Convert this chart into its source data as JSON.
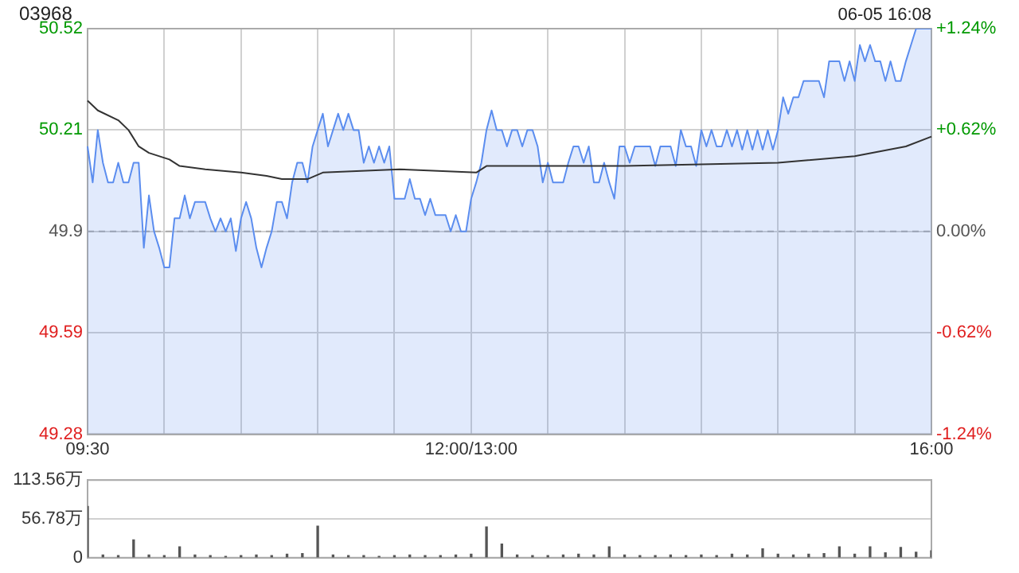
{
  "chart_data": [
    {
      "type": "line",
      "title": "03968",
      "annotations": [
        "06-05 16:08"
      ],
      "categories": [
        "09:30",
        null,
        null,
        null,
        null,
        null,
        null,
        null,
        null,
        null,
        null,
        null,
        null,
        null,
        null,
        null,
        null,
        null,
        null,
        null,
        null,
        null,
        null,
        null,
        null,
        null,
        null,
        null,
        null,
        null,
        null,
        null,
        null,
        null,
        null,
        null,
        null,
        null,
        null,
        null,
        null,
        null,
        null,
        null,
        null,
        null,
        null,
        null,
        null,
        null,
        null,
        null,
        null,
        null,
        null,
        null,
        null,
        null,
        null,
        null,
        null,
        null,
        null,
        null,
        null,
        null,
        null,
        null,
        null,
        null,
        null,
        null,
        null,
        null,
        null,
        "12:00/13:00",
        null,
        null,
        null,
        null,
        null,
        null,
        null,
        null,
        null,
        null,
        null,
        null,
        null,
        null,
        null,
        null,
        null,
        null,
        null,
        null,
        null,
        null,
        null,
        null,
        null,
        null,
        null,
        null,
        null,
        null,
        null,
        null,
        null,
        null,
        null,
        null,
        null,
        null,
        null,
        null,
        null,
        null,
        null,
        null,
        null,
        null,
        null,
        null,
        null,
        null,
        null,
        null,
        null,
        null,
        null,
        null,
        null,
        null,
        null,
        null,
        null,
        null,
        null,
        null,
        null,
        null,
        null,
        null,
        null,
        null,
        null,
        null,
        null,
        null,
        null,
        null,
        null,
        null,
        null,
        null,
        null,
        null,
        null,
        null,
        null,
        null,
        null,
        null,
        null,
        "16:00"
      ],
      "ylim": [
        49.28,
        50.52
      ],
      "yticks": [
        49.28,
        49.59,
        49.9,
        50.21,
        50.52
      ],
      "y2lim": [
        -1.24,
        1.24
      ],
      "y2ticks": [
        {
          "value": -1.24,
          "label": "-1.24%"
        },
        {
          "value": -0.62,
          "label": "-0.62%"
        },
        {
          "value": 0,
          "label": "0.00%"
        },
        {
          "value": 0.62,
          "label": "+0.62%"
        },
        {
          "value": 1.24,
          "label": "+1.24%"
        }
      ],
      "grid": true,
      "marker": "none",
      "ref_lines": [
        {
          "axis": "y",
          "value": 49.9,
          "line_style": "dashed",
          "color": "#aaaaaa"
        }
      ],
      "series": [
        {
          "type": "area",
          "color": "#5b8def",
          "values": [
            50.16,
            50.05,
            50.21,
            50.11,
            50.05,
            50.05,
            50.11,
            50.05,
            50.05,
            50.11,
            50.11,
            49.85,
            50.01,
            49.9,
            49.85,
            49.79,
            49.79,
            49.94,
            49.94,
            50.01,
            49.94,
            49.99,
            49.99,
            49.99,
            49.94,
            49.9,
            49.94,
            49.9,
            49.94,
            49.84,
            49.94,
            49.99,
            49.94,
            49.85,
            49.79,
            49.85,
            49.9,
            49.99,
            49.99,
            49.94,
            50.05,
            50.11,
            50.11,
            50.05,
            50.16,
            50.21,
            50.26,
            50.16,
            50.21,
            50.26,
            50.21,
            50.26,
            50.21,
            50.21,
            50.11,
            50.16,
            50.11,
            50.16,
            50.11,
            50.16,
            50.0,
            50.0,
            50.0,
            50.06,
            50.0,
            50.0,
            49.95,
            50.0,
            49.95,
            49.95,
            49.95,
            49.9,
            49.95,
            49.9,
            49.9,
            50.0,
            50.05,
            50.11,
            50.21,
            50.27,
            50.21,
            50.21,
            50.16,
            50.21,
            50.21,
            50.16,
            50.21,
            50.21,
            50.16,
            50.05,
            50.11,
            50.05,
            50.05,
            50.05,
            50.11,
            50.16,
            50.16,
            50.11,
            50.16,
            50.05,
            50.05,
            50.11,
            50.05,
            50.0,
            50.16,
            50.16,
            50.11,
            50.16,
            50.16,
            50.16,
            50.16,
            50.1,
            50.16,
            50.16,
            50.16,
            50.1,
            50.21,
            50.16,
            50.16,
            50.1,
            50.21,
            50.16,
            50.21,
            50.16,
            50.16,
            50.21,
            50.16,
            50.21,
            50.15,
            50.21,
            50.15,
            50.21,
            50.15,
            50.21,
            50.15,
            50.21,
            50.31,
            50.26,
            50.31,
            50.31,
            50.36,
            50.36,
            50.36,
            50.36,
            50.31,
            50.42,
            50.42,
            50.42,
            50.36,
            50.42,
            50.36,
            50.47,
            50.42,
            50.47,
            50.42,
            50.42,
            50.36,
            50.42,
            50.36,
            50.36,
            50.42,
            50.47,
            50.52,
            50.52,
            50.52,
            50.52
          ]
        },
        {
          "color": "#333333",
          "values": [
            50.3,
            null,
            50.27,
            null,
            null,
            null,
            50.24,
            null,
            50.21,
            null,
            50.16,
            null,
            50.14,
            null,
            null,
            null,
            50.12,
            null,
            50.1,
            null,
            null,
            null,
            null,
            50.09,
            null,
            null,
            null,
            null,
            null,
            null,
            50.08,
            null,
            null,
            null,
            null,
            50.07,
            null,
            null,
            50.06,
            null,
            null,
            null,
            null,
            50.06,
            null,
            null,
            50.08,
            null,
            null,
            null,
            null,
            null,
            null,
            null,
            null,
            null,
            null,
            null,
            null,
            null,
            null,
            50.09,
            null,
            null,
            null,
            null,
            null,
            null,
            null,
            null,
            null,
            null,
            null,
            null,
            null,
            null,
            50.08,
            null,
            50.1,
            null,
            50.1,
            null,
            null,
            null,
            null,
            null,
            null,
            null,
            null,
            null,
            null,
            null,
            null,
            null,
            null,
            null,
            null,
            null,
            null,
            null,
            null,
            null,
            null,
            null,
            null,
            50.1,
            null,
            null,
            null,
            null,
            null,
            null,
            null,
            null,
            null,
            null,
            null,
            null,
            null,
            null,
            null,
            null,
            null,
            null,
            null,
            null,
            null,
            null,
            null,
            null,
            null,
            null,
            null,
            null,
            null,
            50.11,
            null,
            null,
            null,
            null,
            null,
            null,
            null,
            null,
            null,
            null,
            null,
            null,
            null,
            null,
            50.13,
            null,
            null,
            null,
            null,
            null,
            null,
            null,
            null,
            null,
            50.16,
            null,
            null,
            null,
            null,
            50.19
          ]
        }
      ]
    },
    {
      "type": "bar",
      "categories": [
        null,
        null,
        null,
        null,
        null,
        null,
        null,
        null,
        null,
        null,
        null,
        null,
        null,
        null,
        null,
        null,
        null,
        null,
        null,
        null,
        null,
        null,
        null,
        null,
        null,
        null,
        null,
        null,
        null,
        null,
        null,
        null,
        null,
        null,
        null,
        null,
        null,
        null,
        null,
        null,
        null,
        null,
        null,
        null,
        null,
        null,
        null,
        null,
        null,
        null,
        null,
        null,
        null,
        null,
        null,
        null,
        null,
        null,
        null,
        null,
        null,
        null,
        null,
        null,
        null,
        null,
        null,
        null,
        null,
        null,
        null,
        null,
        null,
        null,
        null,
        null,
        null,
        null,
        null,
        null,
        null,
        null,
        null,
        null,
        null,
        null,
        null,
        null,
        null,
        null,
        null,
        null,
        null,
        null,
        null,
        null,
        null,
        null,
        null,
        null,
        null,
        null,
        null,
        null,
        null,
        null,
        null,
        null,
        null,
        null,
        null,
        null,
        null,
        null,
        null,
        null,
        null,
        null,
        null,
        null,
        null,
        null,
        null,
        null,
        null,
        null,
        null,
        null,
        null,
        null,
        null,
        null,
        null,
        null,
        null,
        null,
        null,
        null,
        null,
        null,
        null,
        null,
        null,
        null,
        null,
        null,
        null,
        null,
        null,
        null,
        null,
        null,
        null,
        null,
        null,
        null,
        null,
        null,
        null,
        null,
        null,
        null,
        null,
        null,
        null,
        null
      ],
      "ylim": [
        0,
        113.56
      ],
      "yticks": [
        0,
        {
          "value": 56.78,
          "label": "56.78万"
        },
        {
          "value": 113.56,
          "label": "113.56万"
        }
      ],
      "grid": "y",
      "tick_labels": "y",
      "series": [
        {
          "color": "#555555",
          "values": [
            75,
            null,
            null,
            4,
            null,
            null,
            3,
            null,
            null,
            26,
            null,
            null,
            4,
            null,
            null,
            3,
            null,
            null,
            16,
            null,
            null,
            4,
            null,
            null,
            3,
            null,
            null,
            2,
            null,
            null,
            3,
            null,
            null,
            4,
            null,
            null,
            3,
            null,
            null,
            5,
            null,
            null,
            6,
            null,
            null,
            46,
            null,
            null,
            4,
            null,
            null,
            3,
            null,
            null,
            3,
            null,
            null,
            2,
            null,
            null,
            3,
            null,
            null,
            4,
            null,
            null,
            3,
            null,
            null,
            3,
            null,
            null,
            4,
            null,
            null,
            5,
            null,
            null,
            45,
            null,
            null,
            20,
            null,
            null,
            4,
            null,
            null,
            3,
            null,
            null,
            3,
            null,
            null,
            4,
            null,
            null,
            5,
            null,
            null,
            4,
            null,
            null,
            16,
            null,
            null,
            4,
            null,
            null,
            3,
            null,
            null,
            3,
            null,
            null,
            4,
            null,
            null,
            3,
            null,
            null,
            4,
            null,
            null,
            3,
            null,
            null,
            5,
            null,
            null,
            4,
            null,
            null,
            13,
            null,
            null,
            5,
            null,
            null,
            4,
            null,
            null,
            5,
            null,
            null,
            6,
            null,
            null,
            16,
            null,
            null,
            5,
            null,
            null,
            16,
            null,
            null,
            7,
            null,
            null,
            15,
            null,
            null,
            8,
            null,
            null,
            10
          ]
        }
      ]
    }
  ]
}
